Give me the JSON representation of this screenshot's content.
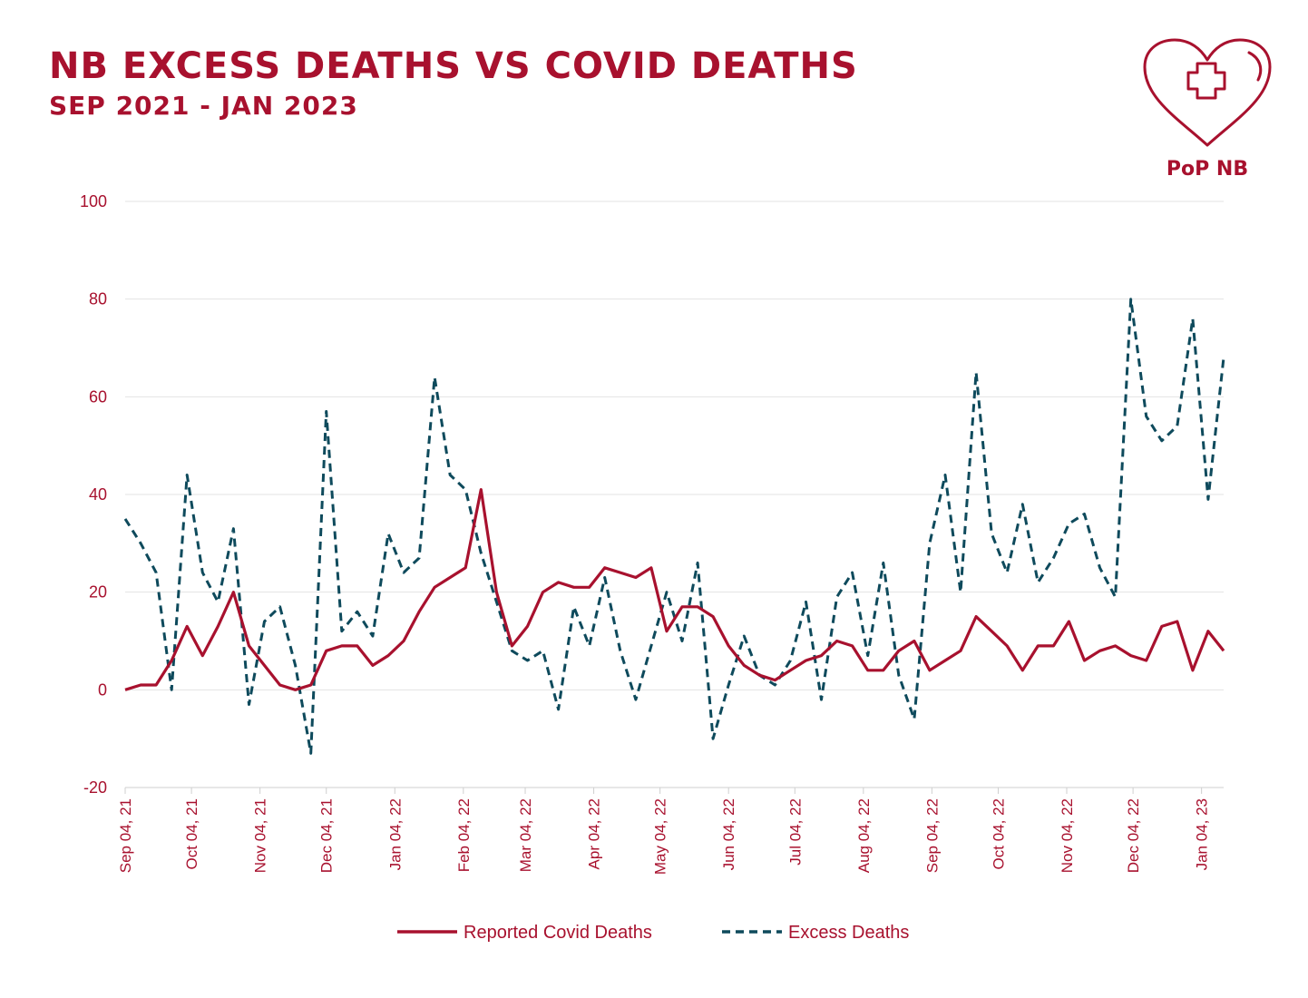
{
  "title": "NB EXCESS DEATHS VS COVID DEATHS",
  "subtitle": "SEP 2021 - JAN 2023",
  "logo": {
    "text": "PoP NB",
    "icon": "heart-cross-icon"
  },
  "colors": {
    "covid": "#a8112e",
    "excess": "#0e4a5c",
    "text": "#a8112e"
  },
  "chart_data": {
    "type": "line",
    "ylim": [
      -20,
      100
    ],
    "yticks": [
      -20,
      0,
      20,
      40,
      60,
      80,
      100
    ],
    "xlim": [
      "2021-09-04",
      "2023-01-14"
    ],
    "xtick_dates": [
      "2021-09-04",
      "2021-10-04",
      "2021-11-04",
      "2021-12-04",
      "2022-01-04",
      "2022-02-04",
      "2022-03-04",
      "2022-04-04",
      "2022-05-04",
      "2022-06-04",
      "2022-07-04",
      "2022-08-04",
      "2022-09-04",
      "2022-10-04",
      "2022-11-04",
      "2022-12-04",
      "2023-01-04"
    ],
    "xtick_labels": [
      "Sep 04, 21",
      "Oct 04, 21",
      "Nov 04, 21",
      "Dec 04, 21",
      "Jan 04, 22",
      "Feb 04, 22",
      "Mar 04, 22",
      "Apr 04, 22",
      "May 04, 22",
      "Jun 04, 22",
      "Jul 04, 22",
      "Aug 04, 22",
      "Sep 04, 22",
      "Oct 04, 22",
      "Nov 04, 22",
      "Dec 04, 22",
      "Jan 04, 23"
    ],
    "grid": "horizontal",
    "legend": "bottom",
    "series": [
      {
        "name": "Reported Covid Deaths",
        "style": "solid",
        "points": [
          [
            "2021-09-04",
            0
          ],
          [
            "2021-09-11",
            1
          ],
          [
            "2021-09-18",
            1
          ],
          [
            "2021-09-25",
            6
          ],
          [
            "2021-10-02",
            13
          ],
          [
            "2021-10-09",
            7
          ],
          [
            "2021-10-16",
            13
          ],
          [
            "2021-10-23",
            20
          ],
          [
            "2021-10-30",
            9
          ],
          [
            "2021-11-06",
            5
          ],
          [
            "2021-11-13",
            1
          ],
          [
            "2021-11-20",
            0
          ],
          [
            "2021-11-27",
            1
          ],
          [
            "2021-12-04",
            8
          ],
          [
            "2021-12-11",
            9
          ],
          [
            "2021-12-18",
            9
          ],
          [
            "2021-12-25",
            5
          ],
          [
            "2022-01-01",
            7
          ],
          [
            "2022-01-08",
            10
          ],
          [
            "2022-01-15",
            16
          ],
          [
            "2022-01-22",
            21
          ],
          [
            "2022-01-29",
            23
          ],
          [
            "2022-02-05",
            25
          ],
          [
            "2022-02-12",
            41
          ],
          [
            "2022-02-19",
            20
          ],
          [
            "2022-02-26",
            9
          ],
          [
            "2022-03-05",
            13
          ],
          [
            "2022-03-12",
            20
          ],
          [
            "2022-03-19",
            22
          ],
          [
            "2022-03-26",
            21
          ],
          [
            "2022-04-02",
            21
          ],
          [
            "2022-04-09",
            25
          ],
          [
            "2022-04-16",
            24
          ],
          [
            "2022-04-23",
            23
          ],
          [
            "2022-04-30",
            25
          ],
          [
            "2022-05-07",
            12
          ],
          [
            "2022-05-14",
            17
          ],
          [
            "2022-05-21",
            17
          ],
          [
            "2022-05-28",
            15
          ],
          [
            "2022-06-04",
            9
          ],
          [
            "2022-06-11",
            5
          ],
          [
            "2022-06-18",
            3
          ],
          [
            "2022-06-25",
            2
          ],
          [
            "2022-07-02",
            4
          ],
          [
            "2022-07-09",
            6
          ],
          [
            "2022-07-16",
            7
          ],
          [
            "2022-07-23",
            10
          ],
          [
            "2022-07-30",
            9
          ],
          [
            "2022-08-06",
            4
          ],
          [
            "2022-08-13",
            4
          ],
          [
            "2022-08-20",
            8
          ],
          [
            "2022-08-27",
            10
          ],
          [
            "2022-09-03",
            4
          ],
          [
            "2022-09-10",
            6
          ],
          [
            "2022-09-17",
            8
          ],
          [
            "2022-09-24",
            15
          ],
          [
            "2022-10-01",
            12
          ],
          [
            "2022-10-08",
            9
          ],
          [
            "2022-10-15",
            4
          ],
          [
            "2022-10-22",
            9
          ],
          [
            "2022-10-29",
            9
          ],
          [
            "2022-11-05",
            14
          ],
          [
            "2022-11-12",
            6
          ],
          [
            "2022-11-19",
            8
          ],
          [
            "2022-11-26",
            9
          ],
          [
            "2022-12-03",
            7
          ],
          [
            "2022-12-10",
            6
          ],
          [
            "2022-12-17",
            13
          ],
          [
            "2022-12-24",
            14
          ],
          [
            "2022-12-31",
            4
          ],
          [
            "2023-01-07",
            12
          ],
          [
            "2023-01-14",
            8
          ]
        ]
      },
      {
        "name": "Excess Deaths",
        "style": "dashed",
        "points": [
          [
            "2021-09-04",
            35
          ],
          [
            "2021-09-11",
            30
          ],
          [
            "2021-09-18",
            24
          ],
          [
            "2021-09-25",
            0
          ],
          [
            "2021-10-02",
            44
          ],
          [
            "2021-10-09",
            24
          ],
          [
            "2021-10-16",
            18
          ],
          [
            "2021-10-23",
            33
          ],
          [
            "2021-10-30",
            -3
          ],
          [
            "2021-11-06",
            14
          ],
          [
            "2021-11-13",
            17
          ],
          [
            "2021-11-20",
            5
          ],
          [
            "2021-11-27",
            -13
          ],
          [
            "2021-12-04",
            57
          ],
          [
            "2021-12-11",
            12
          ],
          [
            "2021-12-18",
            16
          ],
          [
            "2021-12-25",
            11
          ],
          [
            "2022-01-01",
            32
          ],
          [
            "2022-01-08",
            24
          ],
          [
            "2022-01-15",
            27
          ],
          [
            "2022-01-22",
            64
          ],
          [
            "2022-01-29",
            44
          ],
          [
            "2022-02-05",
            41
          ],
          [
            "2022-02-12",
            28
          ],
          [
            "2022-02-19",
            18
          ],
          [
            "2022-02-26",
            8
          ],
          [
            "2022-03-05",
            6
          ],
          [
            "2022-03-12",
            8
          ],
          [
            "2022-03-19",
            -4
          ],
          [
            "2022-03-26",
            17
          ],
          [
            "2022-04-02",
            9
          ],
          [
            "2022-04-09",
            23
          ],
          [
            "2022-04-16",
            8
          ],
          [
            "2022-04-23",
            -2
          ],
          [
            "2022-04-30",
            9
          ],
          [
            "2022-05-07",
            20
          ],
          [
            "2022-05-14",
            10
          ],
          [
            "2022-05-21",
            26
          ],
          [
            "2022-05-28",
            -10
          ],
          [
            "2022-06-04",
            1
          ],
          [
            "2022-06-11",
            11
          ],
          [
            "2022-06-18",
            3
          ],
          [
            "2022-06-25",
            1
          ],
          [
            "2022-07-02",
            6
          ],
          [
            "2022-07-09",
            18
          ],
          [
            "2022-07-16",
            -2
          ],
          [
            "2022-07-23",
            19
          ],
          [
            "2022-07-30",
            24
          ],
          [
            "2022-08-06",
            7
          ],
          [
            "2022-08-13",
            26
          ],
          [
            "2022-08-20",
            3
          ],
          [
            "2022-08-27",
            -6
          ],
          [
            "2022-09-03",
            30
          ],
          [
            "2022-09-10",
            44
          ],
          [
            "2022-09-17",
            20
          ],
          [
            "2022-09-24",
            65
          ],
          [
            "2022-10-01",
            32
          ],
          [
            "2022-10-08",
            24
          ],
          [
            "2022-10-15",
            38
          ],
          [
            "2022-10-22",
            22
          ],
          [
            "2022-10-29",
            27
          ],
          [
            "2022-11-05",
            34
          ],
          [
            "2022-11-12",
            36
          ],
          [
            "2022-11-19",
            25
          ],
          [
            "2022-11-26",
            19
          ],
          [
            "2022-12-03",
            80
          ],
          [
            "2022-12-10",
            56
          ],
          [
            "2022-12-17",
            51
          ],
          [
            "2022-12-24",
            54
          ],
          [
            "2022-12-31",
            76
          ],
          [
            "2023-01-07",
            39
          ],
          [
            "2023-01-14",
            68
          ]
        ]
      }
    ]
  }
}
